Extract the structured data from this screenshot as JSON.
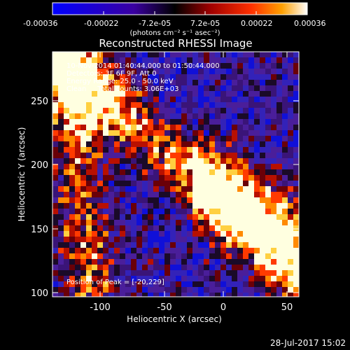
{
  "colorbar": {
    "ticks": [
      "-0.00036",
      "-0.00022",
      "-7.2e-05",
      "7.2e-05",
      "0.00022",
      "0.00036"
    ],
    "unit_label": "(photons cm⁻² s⁻¹ asec⁻²)"
  },
  "title": "Reconstructed RHESSI Image",
  "info": {
    "line1": "10-Nov-2014 01:40:44.000 to 01:50:44.000",
    "line2": "Detectors: 3F 6F 9F, Att 0",
    "line3": "Energy Range: 25.0 - 50.0 keV",
    "line4": "Clean     Total counts: 3.06E+03"
  },
  "peak": "Position of Peak = [-20,229]",
  "axes": {
    "x_label": "Heliocentric X (arcsec)",
    "y_label": "Heliocentric Y (arcsec)",
    "x_ticks": [
      "-100",
      "-50",
      "0",
      "50"
    ],
    "y_ticks": [
      "100",
      "150",
      "200",
      "250"
    ]
  },
  "footer_date": "28-Jul-2017 15:02"
}
